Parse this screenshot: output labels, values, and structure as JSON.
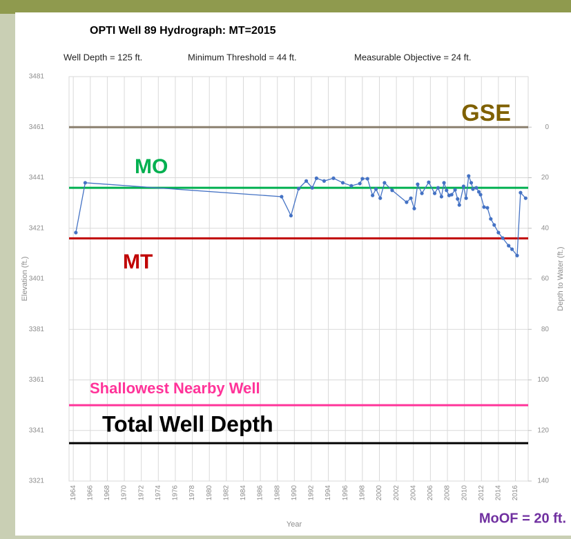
{
  "chart_data": {
    "type": "line",
    "title": "OPTI Well 89 Hydrograph: MT=2015",
    "subtitles": [
      "Well Depth = 125 ft.",
      "Minimum Threshold = 44 ft.",
      "Measurable Objective = 24 ft."
    ],
    "x_label": "Year",
    "y_label": "Elevation (ft.)",
    "y2_label": "Depth to Water (ft.)",
    "note": "MoOF = 20 ft.",
    "xlim": [
      1963.5,
      2017.5
    ],
    "xticks": [
      1964,
      1966,
      1968,
      1970,
      1972,
      1974,
      1976,
      1978,
      1980,
      1982,
      1984,
      1986,
      1988,
      1990,
      1992,
      1994,
      1996,
      1998,
      2000,
      2002,
      2004,
      2006,
      2008,
      2010,
      2012,
      2014,
      2016
    ],
    "ylim": [
      3321,
      3481
    ],
    "yticks": [
      3321,
      3341,
      3361,
      3381,
      3401,
      3421,
      3441,
      3461,
      3481
    ],
    "y2lim": [
      140,
      -20
    ],
    "y2ticks": [
      0,
      20,
      40,
      60,
      80,
      100,
      120,
      140
    ],
    "grid": true,
    "reference_lines": [
      {
        "name": "GSE",
        "value": 3461,
        "color": "#8a7f6e",
        "label_color": "#7f6000"
      },
      {
        "name": "MO",
        "value": 3437,
        "color": "#00b050",
        "label_color": "#00b050"
      },
      {
        "name": "MT",
        "value": 3417,
        "color": "#c00000",
        "label_color": "#c00000"
      },
      {
        "name": "Shallowest Nearby Well",
        "value": 3351,
        "color": "#ff3399",
        "label_color": "#ff3399"
      },
      {
        "name": "Total Well Depth",
        "value": 3336,
        "color": "#000000",
        "label_color": "#000000"
      }
    ],
    "series": [
      {
        "color": "#4472c4",
        "x": [
          1964.3,
          1965.4,
          1988.5,
          1989.6,
          1990.5,
          1991.4,
          1992.1,
          1992.6,
          1993.5,
          1994.6,
          1995.7,
          1996.7,
          1997.7,
          1998.0,
          1998.6,
          1999.2,
          1999.6,
          2000.1,
          2000.6,
          2001.5,
          2003.2,
          2003.7,
          2004.1,
          2004.5,
          2005.0,
          2005.8,
          2006.5,
          2006.9,
          2007.3,
          2007.6,
          2007.9,
          2008.2,
          2008.5,
          2008.9,
          2009.2,
          2009.4,
          2009.9,
          2010.2,
          2010.5,
          2010.8,
          2011.0,
          2011.4,
          2011.7,
          2011.9,
          2012.3,
          2012.7,
          2013.1,
          2013.5,
          2014.0,
          2014.5,
          2015.2,
          2015.6,
          2016.2,
          2016.6,
          2017.2
        ],
        "values": [
          3419.3,
          3439,
          3433.5,
          3426,
          3436.7,
          3439.7,
          3437,
          3440.8,
          3439.7,
          3440.8,
          3439,
          3437.8,
          3438.7,
          3440.6,
          3440.6,
          3434,
          3436.5,
          3432.9,
          3439,
          3436,
          3431.3,
          3432.9,
          3428.8,
          3438.4,
          3434.8,
          3439.2,
          3434.8,
          3437,
          3433.5,
          3439,
          3436,
          3434,
          3434.3,
          3436.2,
          3432.6,
          3430.2,
          3437.6,
          3432.9,
          3441.7,
          3439,
          3436.5,
          3437,
          3435.4,
          3434.3,
          3429.4,
          3429.1,
          3424.7,
          3422.3,
          3419.3,
          3417.1,
          3414.1,
          3412.7,
          3410.2,
          3435.1,
          3432.9
        ]
      }
    ]
  }
}
